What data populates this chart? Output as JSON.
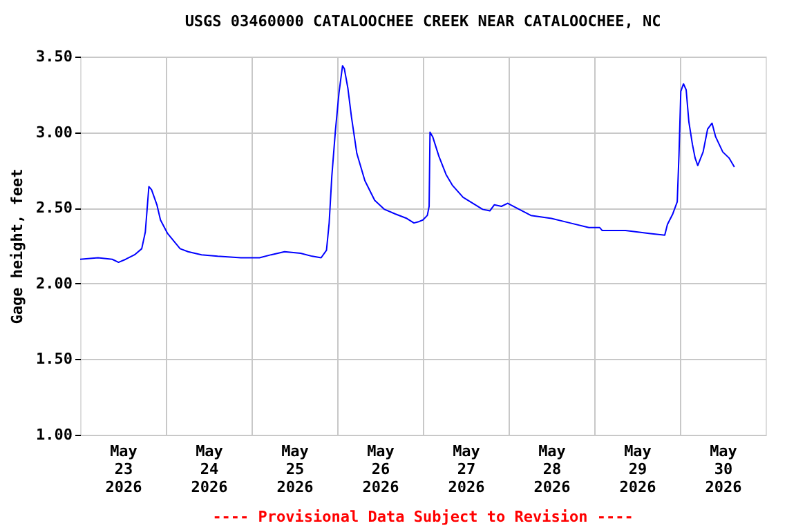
{
  "chart_data": {
    "type": "line",
    "title": "USGS 03460000 CATALOOCHEE CREEK NEAR CATALOOCHEE, NC",
    "ylabel": "Gage height, feet",
    "annotations": [
      "---- Provisional Data Subject to Revision ----"
    ],
    "xlim": [
      "2026-05-23",
      "2026-05-31"
    ],
    "xticks": [
      {
        "value": "2026-05-23T12:00",
        "label": "May\n23\n2026"
      },
      {
        "value": "2026-05-24T12:00",
        "label": "May\n24\n2026"
      },
      {
        "value": "2026-05-25T12:00",
        "label": "May\n25\n2026"
      },
      {
        "value": "2026-05-26T12:00",
        "label": "May\n26\n2026"
      },
      {
        "value": "2026-05-27T12:00",
        "label": "May\n27\n2026"
      },
      {
        "value": "2026-05-28T12:00",
        "label": "May\n28\n2026"
      },
      {
        "value": "2026-05-29T12:00",
        "label": "May\n29\n2026"
      },
      {
        "value": "2026-05-30T12:00",
        "label": "May\n30\n2026"
      },
      {
        "value": "2026-05-24",
        "label": null
      },
      {
        "value": "2026-05-25",
        "label": null
      },
      {
        "value": "2026-05-26",
        "label": null
      },
      {
        "value": "2026-05-27",
        "label": null
      },
      {
        "value": "2026-05-28",
        "label": null
      },
      {
        "value": "2026-05-29",
        "label": null
      },
      {
        "value": "2026-05-30",
        "label": null
      }
    ],
    "ylim": [
      1.0,
      3.5
    ],
    "yticks": [
      {
        "value": 1.0,
        "label": "1.00"
      },
      {
        "value": 1.5,
        "label": "1.50"
      },
      {
        "value": 2.0,
        "label": "2.00"
      },
      {
        "value": 2.5,
        "label": "2.50"
      },
      {
        "value": 3.0,
        "label": "3.00"
      },
      {
        "value": 3.5,
        "label": "3.50"
      }
    ],
    "grid": true,
    "marker": "none",
    "line_style": "solid",
    "x": [
      "2026-05-23T00:00",
      "2026-05-23T05:00",
      "2026-05-23T09:00",
      "2026-05-23T10:45",
      "2026-05-23T12:45",
      "2026-05-23T15:15",
      "2026-05-23T17:15",
      "2026-05-23T18:15",
      "2026-05-23T18:45",
      "2026-05-23T19:15",
      "2026-05-23T20:00",
      "2026-05-23T21:30",
      "2026-05-23T22:30",
      "2026-05-24T00:30",
      "2026-05-24T02:15",
      "2026-05-24T04:00",
      "2026-05-24T06:15",
      "2026-05-24T10:00",
      "2026-05-24T14:30",
      "2026-05-24T21:00",
      "2026-05-25T02:15",
      "2026-05-25T05:30",
      "2026-05-25T09:15",
      "2026-05-25T13:45",
      "2026-05-25T17:00",
      "2026-05-25T19:30",
      "2026-05-25T21:00",
      "2026-05-25T21:45",
      "2026-05-25T22:30",
      "2026-05-25T23:30",
      "2026-05-26T00:30",
      "2026-05-26T01:30",
      "2026-05-26T02:00",
      "2026-05-26T03:00",
      "2026-05-26T04:00",
      "2026-05-26T05:30",
      "2026-05-26T07:45",
      "2026-05-26T10:30",
      "2026-05-26T13:15",
      "2026-05-26T16:15",
      "2026-05-26T19:30",
      "2026-05-26T21:30",
      "2026-05-26T23:00",
      "2026-05-27T00:00",
      "2026-05-27T01:15",
      "2026-05-27T01:45",
      "2026-05-27T02:00",
      "2026-05-27T02:45",
      "2026-05-27T04:30",
      "2026-05-27T06:30",
      "2026-05-27T08:15",
      "2026-05-27T11:15",
      "2026-05-27T14:00",
      "2026-05-27T16:45",
      "2026-05-27T18:45",
      "2026-05-27T20:00",
      "2026-05-27T22:00",
      "2026-05-27T23:45",
      "2026-05-28T03:00",
      "2026-05-28T06:15",
      "2026-05-28T12:00",
      "2026-05-28T17:15",
      "2026-05-28T22:30",
      "2026-05-29T01:30",
      "2026-05-29T02:15",
      "2026-05-29T08:45",
      "2026-05-29T15:45",
      "2026-05-29T19:45",
      "2026-05-29T20:30",
      "2026-05-29T22:00",
      "2026-05-29T23:15",
      "2026-05-29T23:45",
      "2026-05-30T00:15",
      "2026-05-30T01:00",
      "2026-05-30T01:45",
      "2026-05-30T02:30",
      "2026-05-30T03:30",
      "2026-05-30T04:15",
      "2026-05-30T05:00",
      "2026-05-30T06:30",
      "2026-05-30T07:45",
      "2026-05-30T09:00",
      "2026-05-30T10:00",
      "2026-05-30T12:00",
      "2026-05-30T13:45",
      "2026-05-30T15:15"
    ],
    "series": [
      {
        "color": "#0000ff",
        "values": [
          2.16,
          2.17,
          2.16,
          2.14,
          2.16,
          2.19,
          2.23,
          2.34,
          2.49,
          2.64,
          2.62,
          2.52,
          2.42,
          2.33,
          2.28,
          2.23,
          2.21,
          2.19,
          2.18,
          2.17,
          2.17,
          2.19,
          2.21,
          2.2,
          2.18,
          2.17,
          2.22,
          2.4,
          2.71,
          3.01,
          3.26,
          3.44,
          3.42,
          3.29,
          3.1,
          2.86,
          2.68,
          2.55,
          2.49,
          2.46,
          2.43,
          2.4,
          2.41,
          2.42,
          2.45,
          2.51,
          3.0,
          2.97,
          2.84,
          2.72,
          2.65,
          2.57,
          2.53,
          2.49,
          2.48,
          2.52,
          2.51,
          2.53,
          2.49,
          2.45,
          2.43,
          2.4,
          2.37,
          2.37,
          2.35,
          2.35,
          2.33,
          2.32,
          2.39,
          2.46,
          2.54,
          2.86,
          3.27,
          3.32,
          3.28,
          3.07,
          2.92,
          2.83,
          2.78,
          2.87,
          3.02,
          3.06,
          2.97,
          2.87,
          2.83,
          2.77
        ]
      }
    ]
  }
}
